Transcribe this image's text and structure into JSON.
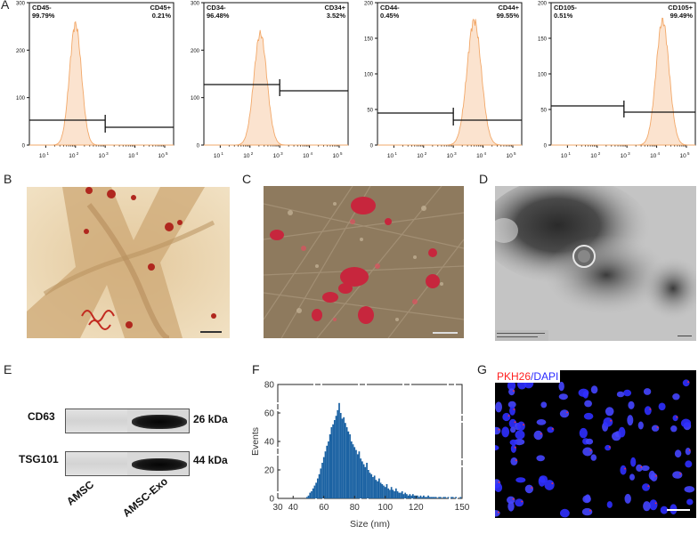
{
  "panels": {
    "A": "A",
    "B": "B",
    "C": "C",
    "D": "D",
    "E": "E",
    "F": "F",
    "G": "G"
  },
  "flow": [
    {
      "neg_label": "CD45-",
      "neg_pct": "99.79%",
      "pos_label": "CD45+",
      "pos_pct": "0.21%",
      "yticks": [
        "0",
        "100",
        "200",
        "300"
      ],
      "ymax": 300,
      "peak_log": 2.0,
      "sigma": 0.2,
      "peak": 255
    },
    {
      "neg_label": "CD34-",
      "neg_pct": "96.48%",
      "pos_label": "CD34+",
      "pos_pct": "3.52%",
      "yticks": [
        "0",
        "100",
        "200",
        "300"
      ],
      "ymax": 300,
      "peak_log": 2.35,
      "sigma": 0.22,
      "peak": 235
    },
    {
      "neg_label": "CD44-",
      "neg_pct": "0.45%",
      "pos_label": "CD44+",
      "pos_pct": "99.55%",
      "yticks": [
        "0",
        "50",
        "100",
        "150",
        "200"
      ],
      "ymax": 200,
      "peak_log": 3.7,
      "sigma": 0.24,
      "peak": 175
    },
    {
      "neg_label": "CD105-",
      "neg_pct": "0.51%",
      "pos_label": "CD105+",
      "pos_pct": "99.49%",
      "yticks": [
        "0",
        "50",
        "100",
        "150",
        "200"
      ],
      "ymax": 200,
      "peak_log": 4.2,
      "sigma": 0.22,
      "peak": 175
    }
  ],
  "flow_xticks": [
    "10 1",
    "10 2",
    "10 3",
    "10 4",
    "10 5"
  ],
  "western": {
    "rows": [
      {
        "protein": "CD63",
        "size": "26 kDa"
      },
      {
        "protein": "TSG101",
        "size": "44 kDa"
      }
    ],
    "lanes": [
      "AMSC",
      "AMSC-Exo"
    ]
  },
  "chart_data": {
    "type": "bar",
    "xlabel": "Size (nm)",
    "ylabel": "Events",
    "xlim": [
      30,
      150
    ],
    "ylim": [
      0,
      80
    ],
    "xticks": [
      30,
      40,
      60,
      80,
      100,
      120,
      150
    ],
    "yticks": [
      0,
      20,
      40,
      60,
      80
    ],
    "x": [
      49,
      50,
      51,
      52,
      53,
      54,
      55,
      56,
      57,
      58,
      59,
      60,
      61,
      62,
      63,
      64,
      65,
      66,
      67,
      68,
      69,
      70,
      71,
      72,
      73,
      74,
      75,
      76,
      77,
      78,
      79,
      80,
      81,
      82,
      83,
      84,
      85,
      86,
      87,
      88,
      89,
      90,
      91,
      92,
      93,
      94,
      95,
      96,
      97,
      98,
      99,
      100,
      101,
      102,
      103,
      104,
      105,
      106,
      107,
      108,
      109,
      110,
      111,
      112,
      113,
      114,
      115,
      116,
      117,
      118,
      119,
      120,
      121,
      122,
      123,
      124,
      125,
      126,
      127,
      128,
      129,
      130,
      131,
      132,
      133,
      134,
      135,
      136,
      137,
      138,
      139,
      140,
      141,
      142,
      143,
      144,
      145,
      146,
      147,
      148,
      149,
      150
    ],
    "values": [
      1,
      2,
      4,
      5,
      7,
      9,
      11,
      14,
      17,
      21,
      25,
      29,
      33,
      37,
      40,
      45,
      50,
      52,
      55,
      58,
      62,
      67,
      60,
      56,
      57,
      53,
      50,
      47,
      45,
      40,
      38,
      36,
      34,
      31,
      33,
      28,
      26,
      24,
      22,
      25,
      20,
      18,
      17,
      15,
      16,
      13,
      12,
      14,
      11,
      10,
      9,
      8,
      10,
      7,
      6,
      8,
      6,
      5,
      7,
      5,
      4,
      4,
      5,
      3,
      4,
      3,
      2,
      3,
      2,
      3,
      2,
      2,
      2,
      1,
      2,
      1,
      2,
      1,
      1,
      2,
      1,
      1,
      1,
      1,
      1,
      0,
      1,
      1,
      0,
      1,
      1,
      0,
      1,
      0,
      1,
      1,
      0,
      1,
      0,
      0,
      1,
      0
    ]
  },
  "fluor": {
    "pkh26": "PKH26",
    "sep": "/",
    "dapi": "DAPI"
  },
  "colors": {
    "flow_fill": "#fbe3cf",
    "flow_line": "#f2a869",
    "hist_bar": "#1b62a3",
    "pkh": "#ff2020",
    "dapi": "#3a3aff"
  }
}
